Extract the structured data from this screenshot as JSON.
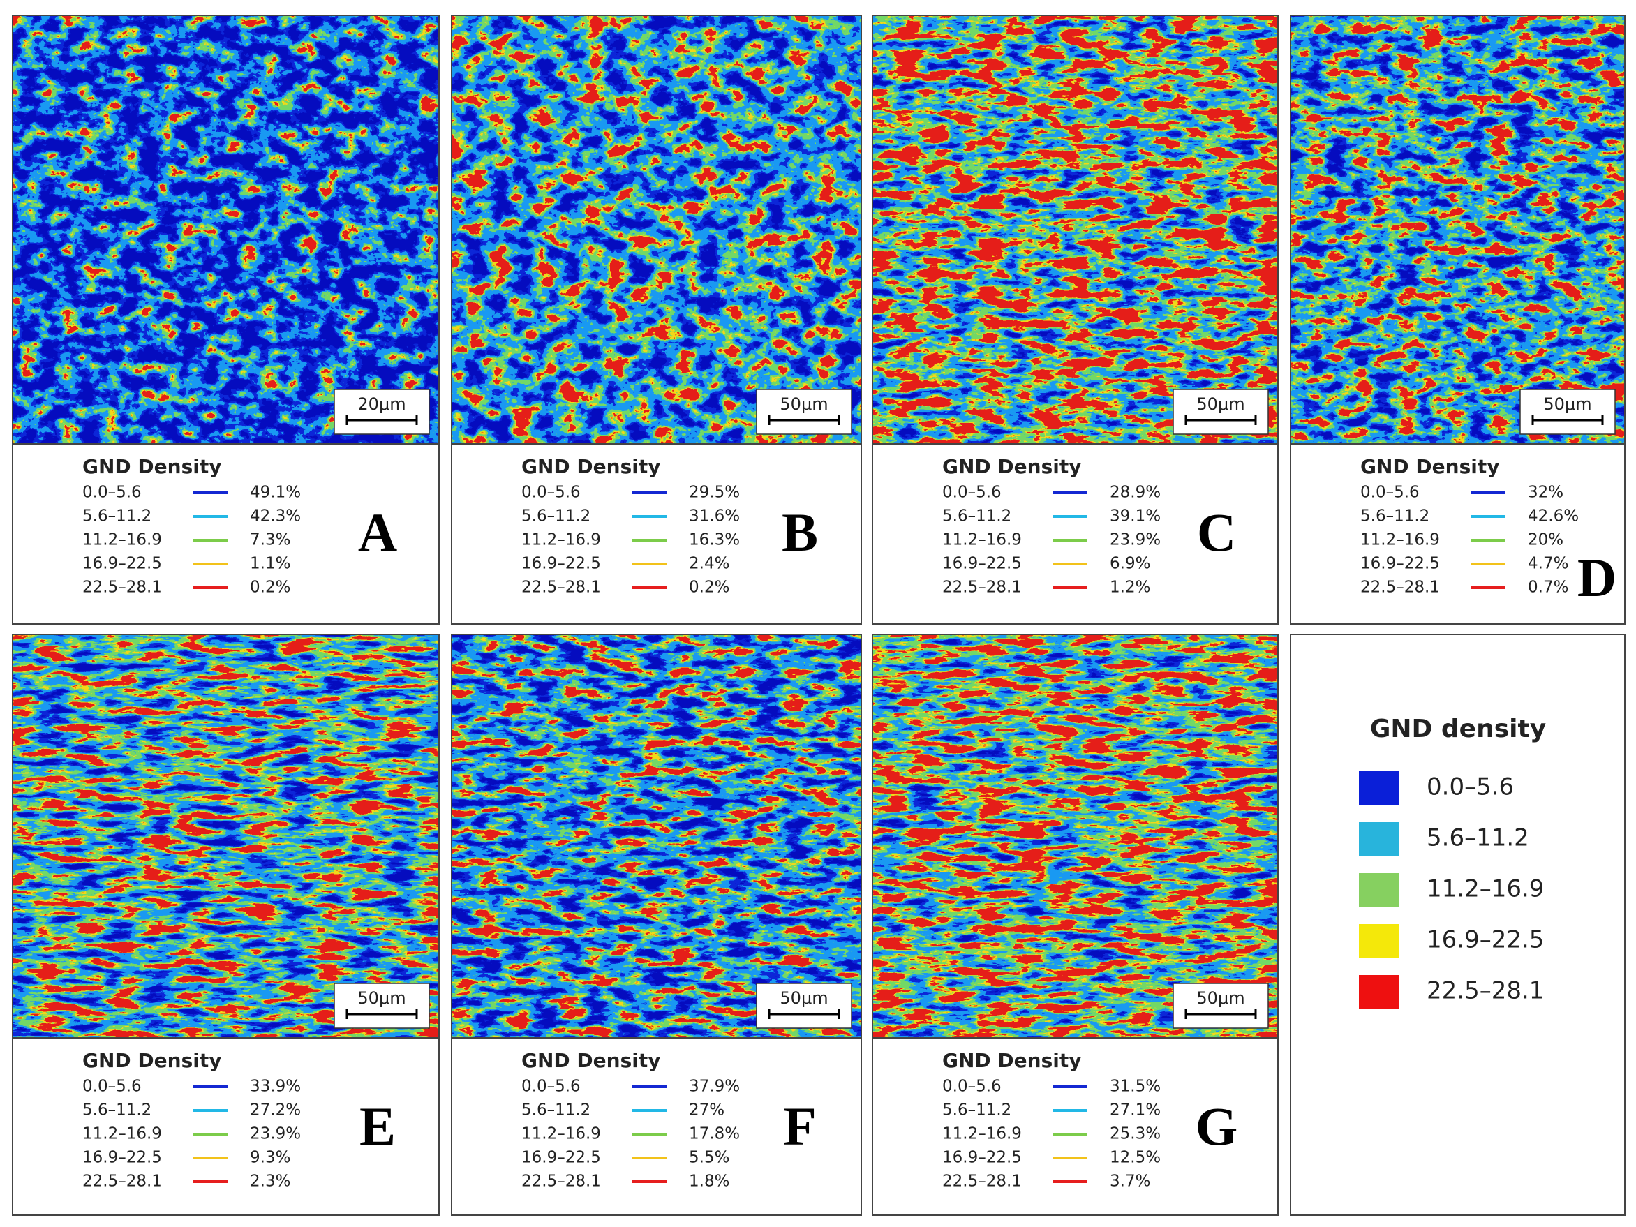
{
  "panels": [
    {
      "label": "A",
      "scale_bar": "20μm",
      "legend_title": "GND Density",
      "rows": [
        {
          "range": "0.0–5.6",
          "value": "49.1%"
        },
        {
          "range": "5.6–11.2",
          "value": "42.3%"
        },
        {
          "range": "11.2–16.9",
          "value": "7.3%"
        },
        {
          "range": "16.9–22.5",
          "value": "1.1%"
        },
        {
          "range": "22.5–28.1",
          "value": "0.2%"
        }
      ]
    },
    {
      "label": "B",
      "scale_bar": "50μm",
      "legend_title": "GND Density",
      "rows": [
        {
          "range": "0.0–5.6",
          "value": "29.5%"
        },
        {
          "range": "5.6–11.2",
          "value": "31.6%"
        },
        {
          "range": "11.2–16.9",
          "value": "16.3%"
        },
        {
          "range": "16.9–22.5",
          "value": "2.4%"
        },
        {
          "range": "22.5–28.1",
          "value": "0.2%"
        }
      ]
    },
    {
      "label": "C",
      "scale_bar": "50μm",
      "legend_title": "GND Density",
      "rows": [
        {
          "range": "0.0–5.6",
          "value": "28.9%"
        },
        {
          "range": "5.6–11.2",
          "value": "39.1%"
        },
        {
          "range": "11.2–16.9",
          "value": "23.9%"
        },
        {
          "range": "16.9–22.5",
          "value": "6.9%"
        },
        {
          "range": "22.5–28.1",
          "value": "1.2%"
        }
      ]
    },
    {
      "label": "D",
      "scale_bar": "50μm",
      "legend_title": "GND Density",
      "rows": [
        {
          "range": "0.0–5.6",
          "value": "32%"
        },
        {
          "range": "5.6–11.2",
          "value": "42.6%"
        },
        {
          "range": "11.2–16.9",
          "value": "20%"
        },
        {
          "range": "16.9–22.5",
          "value": "4.7%"
        },
        {
          "range": "22.5–28.1",
          "value": "0.7%"
        }
      ]
    },
    {
      "label": "E",
      "scale_bar": "50μm",
      "legend_title": "GND Density",
      "rows": [
        {
          "range": "0.0–5.6",
          "value": "33.9%"
        },
        {
          "range": "5.6–11.2",
          "value": "27.2%"
        },
        {
          "range": "11.2–16.9",
          "value": "23.9%"
        },
        {
          "range": "16.9–22.5",
          "value": "9.3%"
        },
        {
          "range": "22.5–28.1",
          "value": "2.3%"
        }
      ]
    },
    {
      "label": "F",
      "scale_bar": "50μm",
      "legend_title": "GND Density",
      "rows": [
        {
          "range": "0.0–5.6",
          "value": "37.9%"
        },
        {
          "range": "5.6–11.2",
          "value": "27%"
        },
        {
          "range": "11.2–16.9",
          "value": "17.8%"
        },
        {
          "range": "16.9–22.5",
          "value": "5.5%"
        },
        {
          "range": "22.5–28.1",
          "value": "1.8%"
        }
      ]
    },
    {
      "label": "G",
      "scale_bar": "50μm",
      "legend_title": "GND Density",
      "rows": [
        {
          "range": "0.0–5.6",
          "value": "31.5%"
        },
        {
          "range": "5.6–11.2",
          "value": "27.1%"
        },
        {
          "range": "11.2–16.9",
          "value": "25.3%"
        },
        {
          "range": "16.9–22.5",
          "value": "12.5%"
        },
        {
          "range": "22.5–28.1",
          "value": "3.7%"
        }
      ]
    }
  ],
  "key": {
    "title": "GND density",
    "items": [
      "0.0–5.6",
      "5.6–11.2",
      "11.2–16.9",
      "16.9–22.5",
      "22.5–28.1"
    ]
  }
}
